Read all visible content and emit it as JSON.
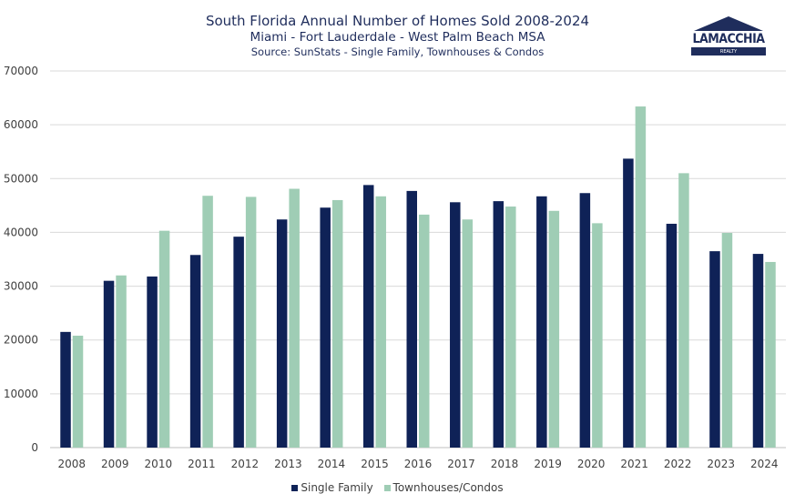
{
  "chart_data": {
    "type": "bar",
    "title": "South Florida Annual Number of Homes Sold 2008-2024",
    "subtitle": "Miami - Fort Lauderdale - West Palm Beach MSA",
    "source": "Source: SunStats - Single Family, Townhouses & Condos",
    "categories": [
      "2008",
      "2009",
      "2010",
      "2011",
      "2012",
      "2013",
      "2014",
      "2015",
      "2016",
      "2017",
      "2018",
      "2019",
      "2020",
      "2021",
      "2022",
      "2023",
      "2024"
    ],
    "series": [
      {
        "name": "Single Family",
        "color": "#0f2257",
        "values": [
          21500,
          31000,
          31800,
          35800,
          39200,
          42400,
          44600,
          48800,
          47700,
          45600,
          45800,
          46700,
          47300,
          53700,
          41600,
          36500,
          36000
        ]
      },
      {
        "name": "Townhouses/Condos",
        "color": "#9fcdb5",
        "values": [
          20800,
          32000,
          40300,
          46800,
          46600,
          48100,
          46000,
          46700,
          43300,
          42400,
          44800,
          44000,
          41700,
          63400,
          51000,
          39900,
          34500
        ]
      }
    ],
    "ylim": [
      0,
      70000
    ],
    "yticks": [
      "0",
      "10000",
      "20000",
      "30000",
      "40000",
      "50000",
      "60000",
      "70000"
    ],
    "grid": true,
    "legend_position": "bottom-center"
  },
  "logo": {
    "text": "LAMACCHIA",
    "sub": "REALTY",
    "color": "#1f2d5c"
  }
}
